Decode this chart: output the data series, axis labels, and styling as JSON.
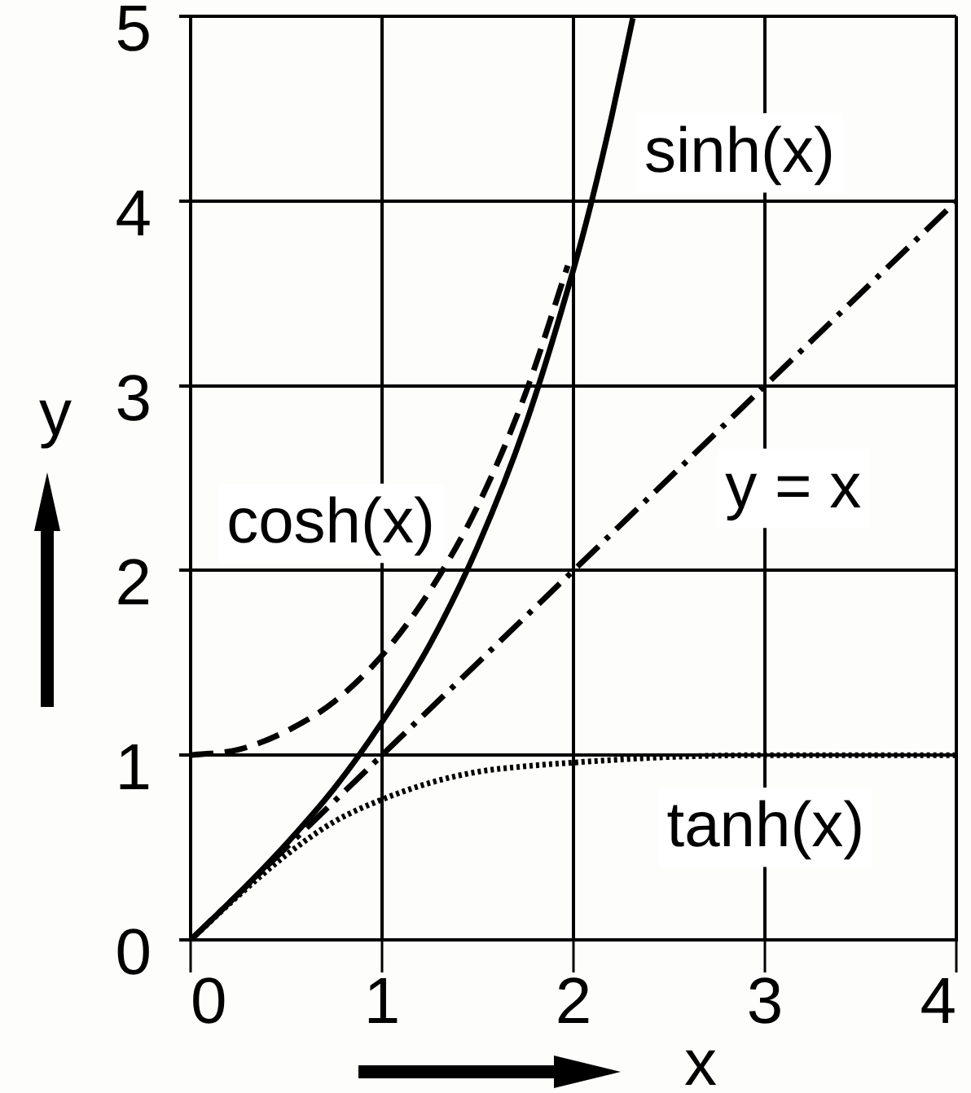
{
  "chart_data": {
    "type": "line",
    "xlabel": "x",
    "ylabel": "y",
    "xlim": [
      0,
      4
    ],
    "ylim": [
      0,
      5
    ],
    "xticks": [
      0,
      1,
      2,
      3,
      4
    ],
    "yticks": [
      0,
      1,
      2,
      3,
      4,
      5
    ],
    "grid": true,
    "legend": false,
    "marker": "none",
    "series": [
      {
        "name": "sinh(x)",
        "color": "#000000",
        "line_style": "solid",
        "x": [
          0,
          0.25,
          0.5,
          0.75,
          1,
          1.25,
          1.5,
          1.75,
          2,
          2.1,
          2.2,
          2.31
        ],
        "values": [
          0,
          0.25,
          0.52,
          0.82,
          1.18,
          1.6,
          2.13,
          2.79,
          3.63,
          4.02,
          4.46,
          4.99
        ]
      },
      {
        "name": "cosh(x)",
        "color": "#000000",
        "line_style": "dashed",
        "x": [
          0,
          0.25,
          0.5,
          0.75,
          1,
          1.25,
          1.5,
          1.75,
          1.97
        ],
        "values": [
          1,
          1.03,
          1.13,
          1.29,
          1.54,
          1.89,
          2.35,
          2.96,
          3.65
        ]
      },
      {
        "name": "y = x",
        "color": "#000000",
        "line_style": "dashdot",
        "x": [
          0,
          4
        ],
        "values": [
          0,
          4
        ]
      },
      {
        "name": "tanh(x)",
        "color": "#000000",
        "line_style": "dotted",
        "x": [
          0,
          0.25,
          0.5,
          0.75,
          1,
          1.25,
          1.5,
          1.75,
          2,
          2.5,
          3,
          3.5,
          4
        ],
        "values": [
          0,
          0.24,
          0.46,
          0.64,
          0.76,
          0.85,
          0.91,
          0.94,
          0.96,
          0.99,
          1,
          1,
          1
        ]
      }
    ]
  }
}
